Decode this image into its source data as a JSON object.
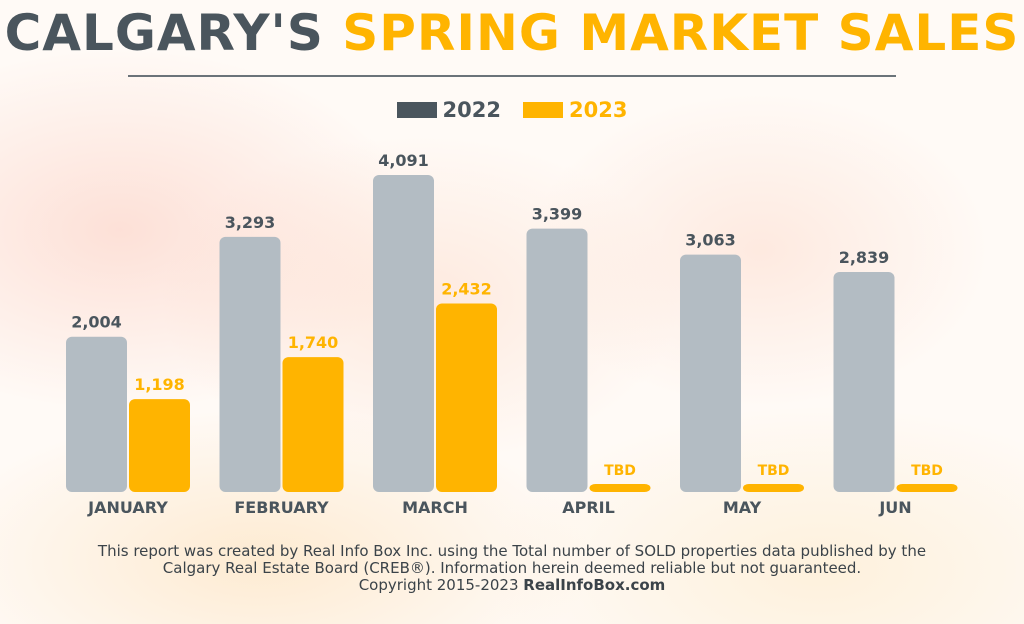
{
  "title": {
    "part1": "CALGARY'S",
    "part2": "SPRING MARKET SALES"
  },
  "colors": {
    "series_2022": "#b3bcc3",
    "series_2023": "#ffb400",
    "legend_2022": "#4a555d",
    "title_dark": "#4a555d",
    "label_dark": "#4a555d"
  },
  "legend": [
    {
      "label": "2022",
      "color": "#4a555d",
      "text_color": "#4a555d"
    },
    {
      "label": "2023",
      "color": "#ffb400",
      "text_color": "#ffb400"
    }
  ],
  "chart_data": {
    "type": "bar",
    "categories": [
      "JANUARY",
      "FEBRUARY",
      "MARCH",
      "APRIL",
      "MAY",
      "JUN"
    ],
    "series": [
      {
        "name": "2022",
        "values": [
          2004,
          3293,
          4091,
          3399,
          3063,
          2839
        ],
        "labels": [
          "2,004",
          "3,293",
          "4,091",
          "3,399",
          "3,063",
          "2,839"
        ]
      },
      {
        "name": "2023",
        "values": [
          1198,
          1740,
          2432,
          null,
          null,
          null
        ],
        "labels": [
          "1,198",
          "1,740",
          "2,432",
          "TBD",
          "TBD",
          "TBD"
        ]
      }
    ],
    "ylim": [
      0,
      4200
    ],
    "grid": false,
    "legend_position": "top-center"
  },
  "footer": {
    "line1": "This report was created by Real Info Box Inc. using the Total number of SOLD properties data published by the",
    "line2": "Calgary Real Estate Board (CREB®). Information herein deemed reliable but not guaranteed.",
    "line3_prefix": "Copyright 2015-2023 ",
    "line3_link": "RealInfoBox.com"
  }
}
